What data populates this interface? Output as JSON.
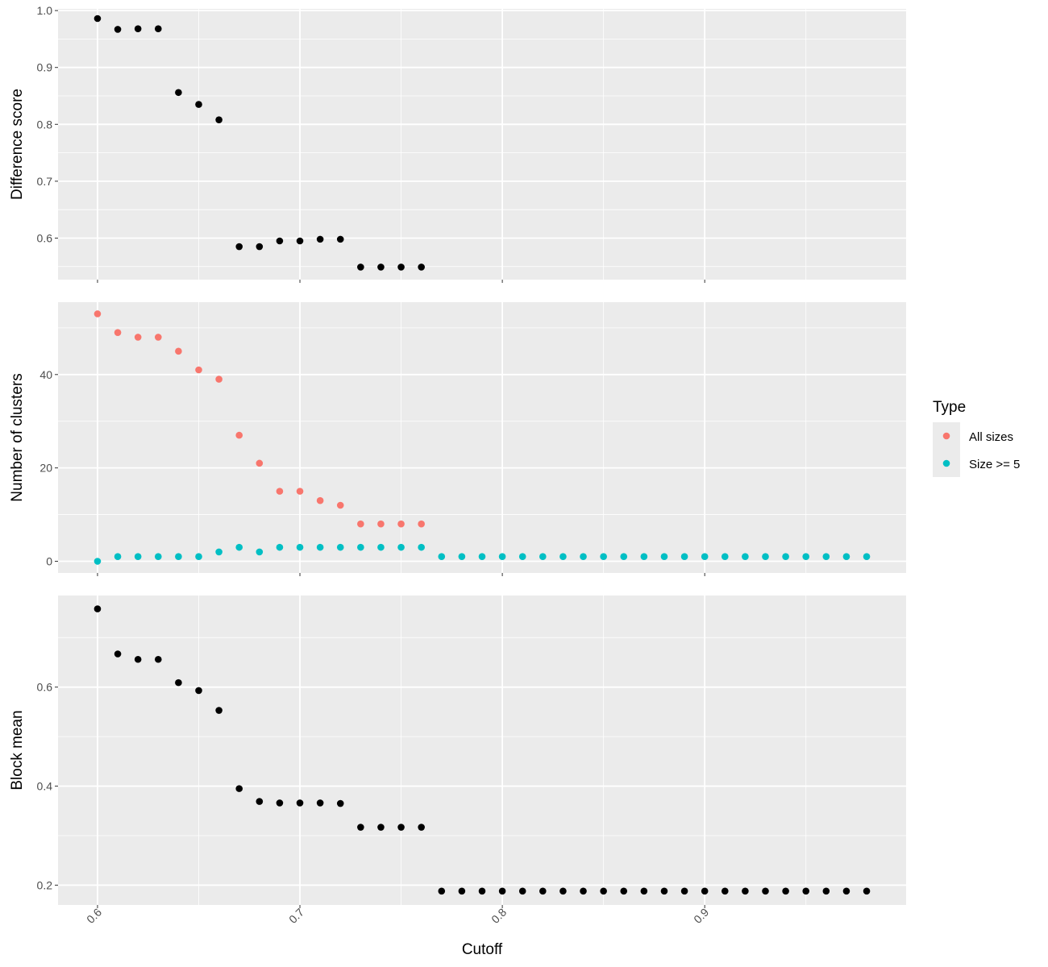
{
  "colors": {
    "panel_bg": "#EBEBEB",
    "grid": "#FFFFFF",
    "point_black": "#000000",
    "all_sizes": "#F8766D",
    "size_ge5": "#00BFC4",
    "tick": "#333333",
    "legend_key_bg": "#EBEBEB"
  },
  "legend": {
    "title": "Type",
    "items": [
      {
        "label": "All sizes",
        "color_key": "all_sizes"
      },
      {
        "label": "Size >= 5",
        "color_key": "size_ge5"
      }
    ]
  },
  "chart_data": {
    "type": "scatter",
    "xlabel": "Cutoff",
    "x_ticks": [
      "0.6",
      "0.7",
      "0.8",
      "0.9"
    ],
    "xlim": [
      0.5805,
      0.9995
    ],
    "grid": true,
    "legend_position": "right",
    "panels": [
      {
        "ylabel": "Difference score",
        "ylim": [
          0.527,
          1.003
        ],
        "y_ticks": [
          "0.6",
          "0.7",
          "0.8",
          "0.9",
          "1.0"
        ],
        "series": [
          {
            "color_key": "point_black",
            "x": [
              0.6,
              0.61,
              0.62,
              0.63,
              0.64,
              0.65,
              0.66,
              0.67,
              0.68,
              0.69,
              0.7,
              0.71,
              0.72,
              0.73,
              0.74,
              0.75,
              0.76
            ],
            "y": [
              0.986,
              0.967,
              0.968,
              0.968,
              0.856,
              0.835,
              0.808,
              0.585,
              0.585,
              0.595,
              0.595,
              0.598,
              0.598,
              0.549,
              0.549,
              0.549,
              0.549
            ]
          }
        ]
      },
      {
        "ylabel": "Number of clusters",
        "ylim": [
          -2.5,
          55.5
        ],
        "y_ticks": [
          "0",
          "20",
          "40"
        ],
        "series": [
          {
            "name": "All sizes",
            "color_key": "all_sizes",
            "x": [
              0.6,
              0.61,
              0.62,
              0.63,
              0.64,
              0.65,
              0.66,
              0.67,
              0.68,
              0.69,
              0.7,
              0.71,
              0.72,
              0.73,
              0.74,
              0.75,
              0.76
            ],
            "y": [
              53,
              49,
              48,
              48,
              45,
              41,
              39,
              27,
              21,
              15,
              15,
              13,
              12,
              8,
              8,
              8,
              8
            ]
          },
          {
            "name": "Size >= 5",
            "color_key": "size_ge5",
            "x": [
              0.6,
              0.61,
              0.62,
              0.63,
              0.64,
              0.65,
              0.66,
              0.67,
              0.68,
              0.69,
              0.7,
              0.71,
              0.72,
              0.73,
              0.74,
              0.75,
              0.76,
              0.77,
              0.78,
              0.79,
              0.8,
              0.81,
              0.82,
              0.83,
              0.84,
              0.85,
              0.86,
              0.87,
              0.88,
              0.89,
              0.9,
              0.91,
              0.92,
              0.93,
              0.94,
              0.95,
              0.96,
              0.97,
              0.98
            ],
            "y": [
              0,
              1,
              1,
              1,
              1,
              1,
              2,
              3,
              2,
              3,
              3,
              3,
              3,
              3,
              3,
              3,
              3,
              1,
              1,
              1,
              1,
              1,
              1,
              1,
              1,
              1,
              1,
              1,
              1,
              1,
              1,
              1,
              1,
              1,
              1,
              1,
              1,
              1,
              1
            ]
          }
        ]
      },
      {
        "ylabel": "Block mean",
        "ylim": [
          0.16,
          0.785
        ],
        "y_ticks": [
          "0.2",
          "0.4",
          "0.6"
        ],
        "series": [
          {
            "color_key": "point_black",
            "x": [
              0.6,
              0.61,
              0.62,
              0.63,
              0.64,
              0.65,
              0.66,
              0.67,
              0.68,
              0.69,
              0.7,
              0.71,
              0.72,
              0.73,
              0.74,
              0.75,
              0.76,
              0.77,
              0.78,
              0.79,
              0.8,
              0.81,
              0.82,
              0.83,
              0.84,
              0.85,
              0.86,
              0.87,
              0.88,
              0.89,
              0.9,
              0.91,
              0.92,
              0.93,
              0.94,
              0.95,
              0.96,
              0.97,
              0.98
            ],
            "y": [
              0.758,
              0.667,
              0.656,
              0.656,
              0.609,
              0.593,
              0.553,
              0.395,
              0.369,
              0.366,
              0.366,
              0.366,
              0.365,
              0.317,
              0.317,
              0.317,
              0.317,
              0.188,
              0.188,
              0.188,
              0.188,
              0.188,
              0.188,
              0.188,
              0.188,
              0.188,
              0.188,
              0.188,
              0.188,
              0.188,
              0.188,
              0.188,
              0.188,
              0.188,
              0.188,
              0.188,
              0.188,
              0.188,
              0.188
            ]
          }
        ]
      }
    ]
  }
}
